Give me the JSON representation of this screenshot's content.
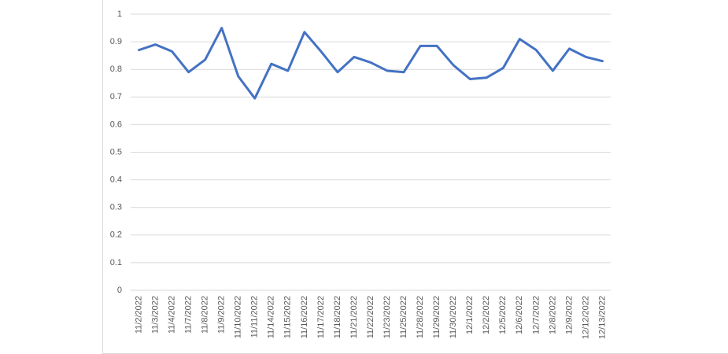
{
  "chart_data": {
    "type": "line",
    "categories": [
      "11/2/2022",
      "11/3/2022",
      "11/4/2022",
      "11/7/2022",
      "11/8/2022",
      "11/9/2022",
      "11/10/2022",
      "11/11/2022",
      "11/14/2022",
      "11/15/2022",
      "11/16/2022",
      "11/17/2022",
      "11/18/2022",
      "11/21/2022",
      "11/22/2022",
      "11/23/2022",
      "11/25/2022",
      "11/28/2022",
      "11/29/2022",
      "11/30/2022",
      "12/1/2022",
      "12/2/2022",
      "12/5/2022",
      "12/6/2022",
      "12/7/2022",
      "12/8/2022",
      "12/9/2022",
      "12/12/2022",
      "12/13/2022"
    ],
    "values": [
      0.87,
      0.89,
      0.865,
      0.79,
      0.835,
      0.95,
      0.775,
      0.695,
      0.82,
      0.795,
      0.935,
      0.865,
      0.79,
      0.845,
      0.825,
      0.795,
      0.79,
      0.885,
      0.885,
      0.815,
      0.765,
      0.77,
      0.805,
      0.91,
      0.87,
      0.795,
      0.875,
      0.845,
      0.83
    ],
    "color": "#4472c4",
    "ylim": [
      0,
      1
    ],
    "yticks": [
      0,
      0.1,
      0.2,
      0.3,
      0.4,
      0.5,
      0.6,
      0.7,
      0.8,
      0.9,
      1
    ],
    "grid": true
  }
}
